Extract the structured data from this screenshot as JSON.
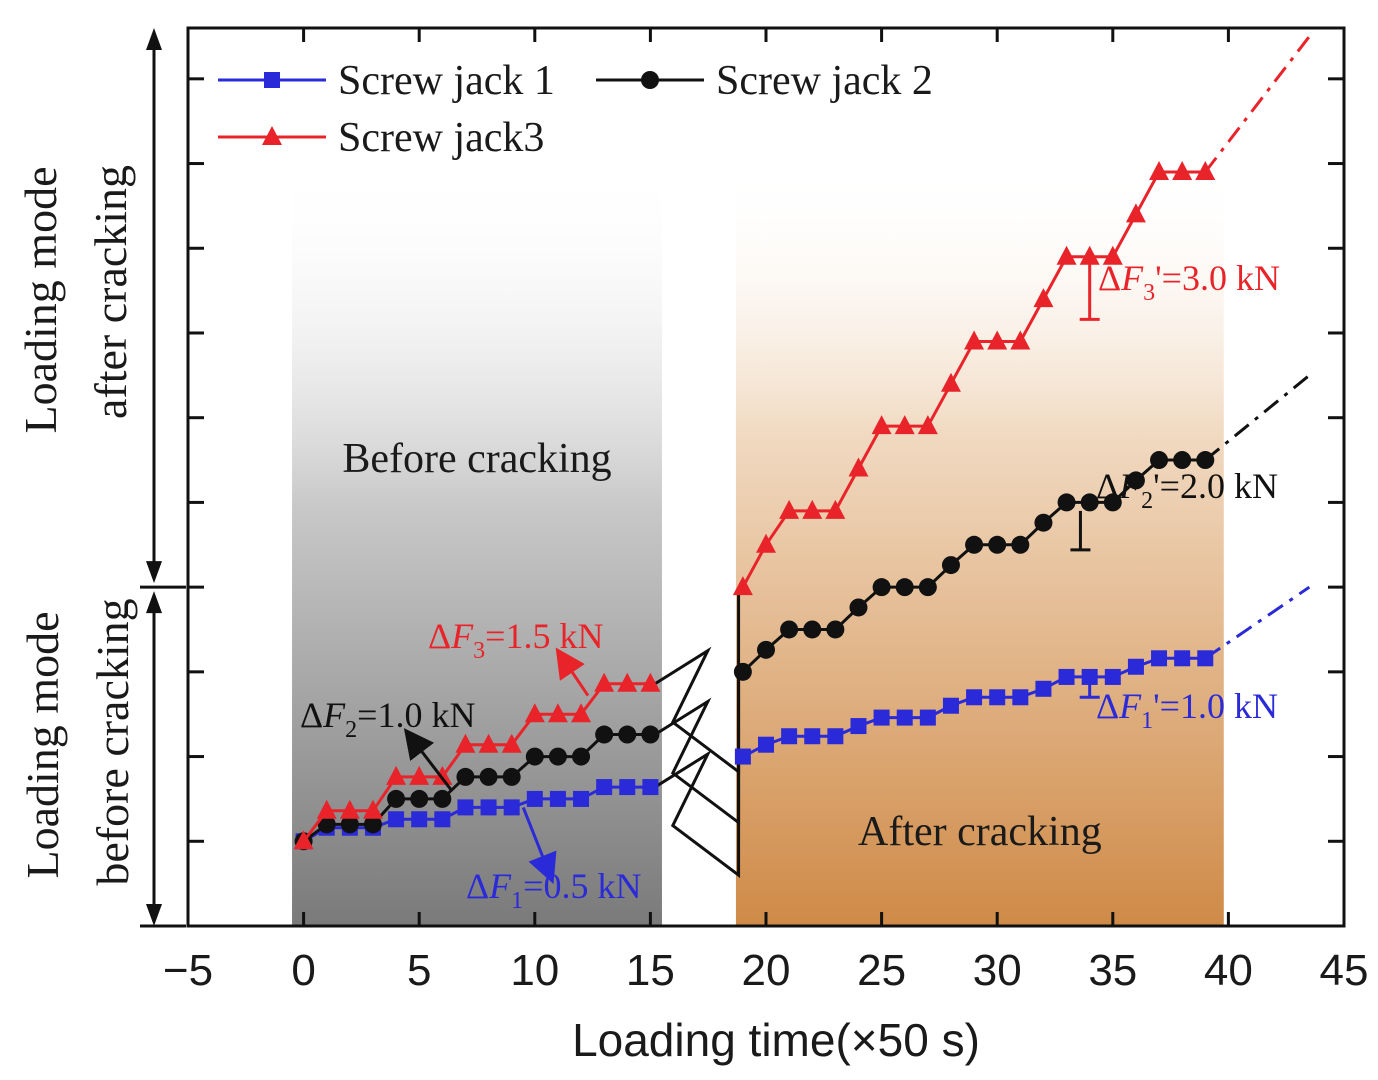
{
  "chart_data": {
    "type": "line",
    "xlabel": "Loading time(×50 s)",
    "ylabel_upper": [
      "Loading mode",
      "after cracking"
    ],
    "ylabel_lower": [
      "Loading mode",
      "before cracking"
    ],
    "xlim": [
      -5,
      45
    ],
    "ylim": [
      -0.5,
      4.8
    ],
    "x_ticks": [
      -5,
      0,
      5,
      10,
      15,
      20,
      25,
      30,
      35,
      40,
      45
    ],
    "x_tick_labels": [
      "−5",
      "0",
      "5",
      "10",
      "15",
      "20",
      "25",
      "30",
      "35",
      "40",
      "45"
    ],
    "y_ticks": [
      0,
      0.5,
      1,
      1.5,
      2,
      2.5,
      3,
      3.5,
      4,
      4.5
    ],
    "regions": [
      {
        "label": "Before cracking",
        "x_start": -0.5,
        "x_end": 15.5,
        "color": "#777777"
      },
      {
        "label": "After cracking",
        "x_start": 18.7,
        "x_end": 39.8,
        "color": "#d4904d"
      }
    ],
    "series": [
      {
        "name": "Screw jack 1",
        "color": "#2a2ad8",
        "marker": "square",
        "before": [
          [
            0,
            0
          ],
          [
            1,
            0.08
          ],
          [
            2,
            0.08
          ],
          [
            3,
            0.08
          ],
          [
            4,
            0.13
          ],
          [
            5,
            0.13
          ],
          [
            6,
            0.13
          ],
          [
            7,
            0.2
          ],
          [
            8,
            0.2
          ],
          [
            9,
            0.2
          ],
          [
            10,
            0.25
          ],
          [
            11,
            0.25
          ],
          [
            12,
            0.25
          ],
          [
            13,
            0.32
          ],
          [
            14,
            0.32
          ],
          [
            15,
            0.32
          ]
        ],
        "after": [
          [
            19,
            0.5
          ],
          [
            20,
            0.57
          ],
          [
            21,
            0.62
          ],
          [
            22,
            0.62
          ],
          [
            23,
            0.62
          ],
          [
            24,
            0.68
          ],
          [
            25,
            0.73
          ],
          [
            26,
            0.73
          ],
          [
            27,
            0.73
          ],
          [
            28,
            0.8
          ],
          [
            29,
            0.85
          ],
          [
            30,
            0.85
          ],
          [
            31,
            0.85
          ],
          [
            32,
            0.9
          ],
          [
            33,
            0.97
          ],
          [
            34,
            0.97
          ],
          [
            35,
            0.97
          ],
          [
            36,
            1.03
          ],
          [
            37,
            1.08
          ],
          [
            38,
            1.08
          ],
          [
            39,
            1.08
          ]
        ],
        "extension": [
          [
            39,
            1.08
          ],
          [
            43.5,
            1.5
          ]
        ]
      },
      {
        "name": "Screw jack 2",
        "color": "#111111",
        "marker": "circle",
        "before": [
          [
            0,
            0
          ],
          [
            1,
            0.1
          ],
          [
            2,
            0.1
          ],
          [
            3,
            0.1
          ],
          [
            4,
            0.25
          ],
          [
            5,
            0.25
          ],
          [
            6,
            0.25
          ],
          [
            7,
            0.38
          ],
          [
            8,
            0.38
          ],
          [
            9,
            0.38
          ],
          [
            10,
            0.5
          ],
          [
            11,
            0.5
          ],
          [
            12,
            0.5
          ],
          [
            13,
            0.63
          ],
          [
            14,
            0.63
          ],
          [
            15,
            0.63
          ]
        ],
        "after": [
          [
            19,
            1.0
          ],
          [
            20,
            1.13
          ],
          [
            21,
            1.25
          ],
          [
            22,
            1.25
          ],
          [
            23,
            1.25
          ],
          [
            24,
            1.38
          ],
          [
            25,
            1.5
          ],
          [
            26,
            1.5
          ],
          [
            27,
            1.5
          ],
          [
            28,
            1.63
          ],
          [
            29,
            1.75
          ],
          [
            30,
            1.75
          ],
          [
            31,
            1.75
          ],
          [
            32,
            1.88
          ],
          [
            33,
            2.0
          ],
          [
            34,
            2.0
          ],
          [
            35,
            2.0
          ],
          [
            36,
            2.13
          ],
          [
            37,
            2.25
          ],
          [
            38,
            2.25
          ],
          [
            39,
            2.25
          ]
        ],
        "extension": [
          [
            39,
            2.25
          ],
          [
            43.5,
            2.75
          ]
        ]
      },
      {
        "name": "Screw jack3",
        "color": "#e8242a",
        "marker": "triangle",
        "before": [
          [
            0,
            0
          ],
          [
            1,
            0.18
          ],
          [
            2,
            0.18
          ],
          [
            3,
            0.18
          ],
          [
            4,
            0.38
          ],
          [
            5,
            0.38
          ],
          [
            6,
            0.38
          ],
          [
            7,
            0.57
          ],
          [
            8,
            0.57
          ],
          [
            9,
            0.57
          ],
          [
            10,
            0.75
          ],
          [
            11,
            0.75
          ],
          [
            12,
            0.75
          ],
          [
            13,
            0.93
          ],
          [
            14,
            0.93
          ],
          [
            15,
            0.93
          ]
        ],
        "after": [
          [
            19,
            1.5
          ],
          [
            20,
            1.75
          ],
          [
            21,
            1.95
          ],
          [
            22,
            1.95
          ],
          [
            23,
            1.95
          ],
          [
            24,
            2.2
          ],
          [
            25,
            2.45
          ],
          [
            26,
            2.45
          ],
          [
            27,
            2.45
          ],
          [
            28,
            2.7
          ],
          [
            29,
            2.95
          ],
          [
            30,
            2.95
          ],
          [
            31,
            2.95
          ],
          [
            32,
            3.2
          ],
          [
            33,
            3.45
          ],
          [
            34,
            3.45
          ],
          [
            35,
            3.45
          ],
          [
            36,
            3.7
          ],
          [
            37,
            3.95
          ],
          [
            38,
            3.95
          ],
          [
            39,
            3.95
          ]
        ],
        "extension": [
          [
            39,
            3.95
          ],
          [
            43.5,
            4.75
          ]
        ]
      }
    ],
    "annotations": [
      {
        "prefix": "ΔF",
        "sub": "3",
        "suffix": "=1.5 kN",
        "color": "#e8242a"
      },
      {
        "prefix": "ΔF",
        "sub": "2",
        "suffix": "=1.0 kN",
        "color": "#111111"
      },
      {
        "prefix": "ΔF",
        "sub": "1",
        "suffix": "=0.5 kN",
        "color": "#2a2ad8"
      },
      {
        "prefix": "ΔF",
        "sub": "3",
        "suffix": "'=3.0 kN",
        "color": "#e8242a"
      },
      {
        "prefix": "ΔF",
        "sub": "2",
        "suffix": "'=2.0 kN",
        "color": "#111111"
      },
      {
        "prefix": "ΔF",
        "sub": "1",
        "suffix": "'=1.0 kN",
        "color": "#2a2ad8"
      }
    ]
  }
}
